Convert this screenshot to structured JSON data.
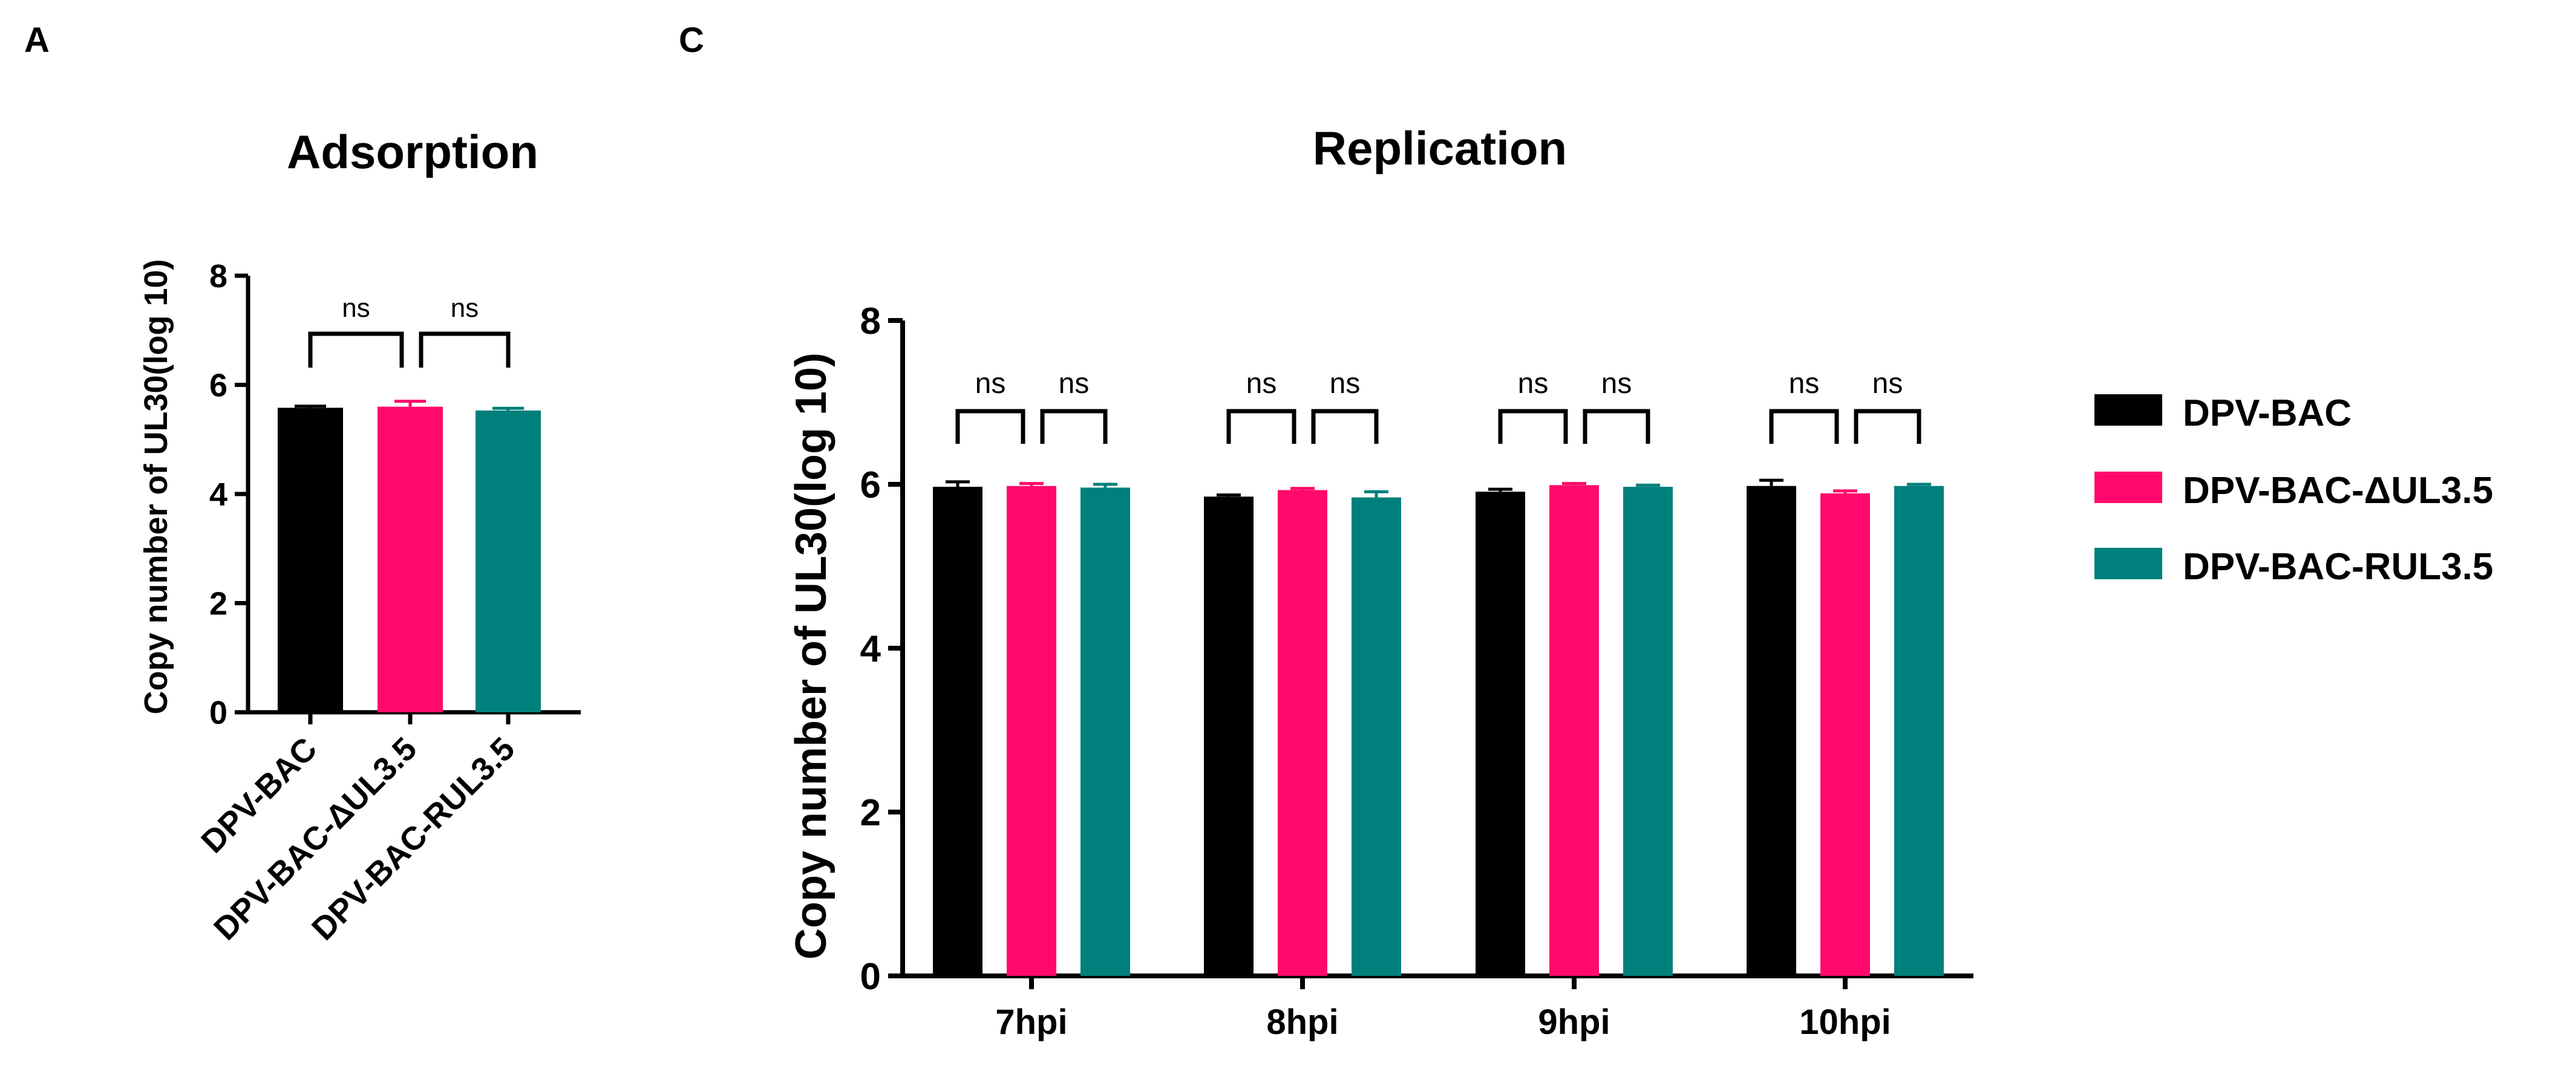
{
  "colors": {
    "DPV-BAC": "#000000",
    "DPV-BAC-ΔUL3.5": "#ff0a6c",
    "DPV-BAC-RUL3.5": "#00807c"
  },
  "panel_a": {
    "letter": "A"
  },
  "panel_c": {
    "letter": "C"
  },
  "legend": {
    "placement": "right",
    "items": [
      "DPV-BAC",
      "DPV-BAC-ΔUL3.5",
      "DPV-BAC-RUL3.5"
    ]
  },
  "chart_data": [
    {
      "type": "bar",
      "title": "Adsorption",
      "xlabel": "",
      "ylabel": "Copy number of UL30(log 10)",
      "ylim": [
        0,
        8
      ],
      "yticks": [
        "0",
        "2",
        "4",
        "6",
        "8"
      ],
      "categories": [
        "DPV-BAC",
        "DPV-BAC-ΔUL3.5",
        "DPV-BAC-RUL3.5"
      ],
      "values": [
        5.58,
        5.6,
        5.53
      ],
      "errors": [
        0.03,
        0.1,
        0.04
      ],
      "significance": [
        "ns",
        "ns"
      ]
    },
    {
      "type": "bar",
      "title": "Replication",
      "xlabel": "",
      "ylabel": "Copy number of UL30(log 10)",
      "ylim": [
        0,
        8
      ],
      "yticks": [
        "0",
        "2",
        "4",
        "6",
        "8"
      ],
      "categories": [
        "7hpi",
        "8hpi",
        "9hpi",
        "10hpi"
      ],
      "series": [
        {
          "name": "DPV-BAC",
          "values": [
            5.97,
            5.85,
            5.91,
            5.98
          ],
          "errors": [
            0.06,
            0.02,
            0.03,
            0.07
          ]
        },
        {
          "name": "DPV-BAC-ΔUL3.5",
          "values": [
            5.98,
            5.93,
            5.99,
            5.89
          ],
          "errors": [
            0.03,
            0.02,
            0.02,
            0.03
          ]
        },
        {
          "name": "DPV-BAC-RUL3.5",
          "values": [
            5.96,
            5.84,
            5.97,
            5.98
          ],
          "errors": [
            0.04,
            0.07,
            0.02,
            0.02
          ]
        }
      ],
      "significance": [
        "ns",
        "ns"
      ]
    }
  ]
}
